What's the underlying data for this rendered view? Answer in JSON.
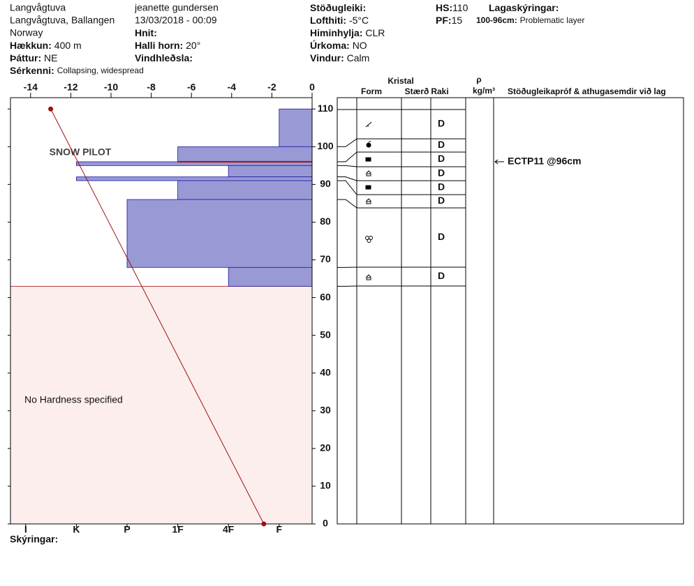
{
  "header": {
    "site": "Langvågtuva",
    "location": "Langvågtuva, Ballangen",
    "country": "Norway",
    "observer": "jeanette gundersen",
    "datetime": "13/03/2018 - 00:09",
    "fields": [
      {
        "label": "Hækkun:",
        "value": "400 m"
      },
      {
        "label": "Þáttur:",
        "value": "NE"
      },
      {
        "label": "Sérkenni:",
        "value": "Collapsing, widespread"
      },
      {
        "label": "Hnit:"
      },
      {
        "label": "Halli horn:",
        "value": "20°"
      },
      {
        "label": "Vindhleðsla:"
      },
      {
        "label": "Stöðugleiki:"
      },
      {
        "label": "Lofthiti:",
        "value": "-5°C"
      },
      {
        "label": "Himinhylja:",
        "value": "CLR"
      },
      {
        "label": "Úrkoma:",
        "value": "NO"
      },
      {
        "label": "Vindur:",
        "value": "Calm"
      },
      {
        "label": "HS:",
        "value": 110
      },
      {
        "label": "PF:",
        "value": 15
      },
      {
        "label": "Lagaskýringar:"
      },
      {
        "label": "100-96cm:",
        "value": "Problematic layer"
      }
    ]
  },
  "table": {
    "headers": {
      "crystal": "Kristal",
      "form": "Form",
      "size": "Stærð",
      "wetness": "Raki",
      "density": "ρ",
      "density_unit": "kg/m³",
      "comments": "Stöðugleikapróf & athugasemdir við lag"
    },
    "notes_label": "Skýringar:"
  },
  "watermark": "SNOW PILOT",
  "chart_data": {
    "type": "profile",
    "ylim": [
      0,
      113
    ],
    "yticks": [
      0,
      10,
      20,
      30,
      40,
      50,
      60,
      70,
      80,
      90,
      100,
      110
    ],
    "temperature": {
      "xlim": [
        -15,
        0
      ],
      "xticks": [
        -14,
        -12,
        -10,
        -8,
        -6,
        -4,
        -2,
        0
      ],
      "color": "#a01010",
      "values": [
        -13,
        -2.4
      ],
      "heights": [
        110,
        0
      ]
    },
    "hardness": {
      "xlim": [
        0.35,
        6.3
      ],
      "xticks": [
        {
          "value": 6,
          "label": "I"
        },
        {
          "value": 5,
          "label": "K"
        },
        {
          "value": 4,
          "label": "P"
        },
        {
          "value": 3,
          "label": "1F"
        },
        {
          "value": 2,
          "label": "4F"
        },
        {
          "value": 1,
          "label": "F"
        }
      ],
      "color": "#9999d6",
      "edge": "#1a1aa0"
    },
    "layers": {
      "top": [
        110,
        100,
        96,
        95,
        92,
        91,
        86,
        68
      ],
      "bottom": [
        100,
        96,
        95,
        92,
        91,
        86,
        68,
        63
      ],
      "hardness": [
        1,
        3,
        5,
        2,
        5,
        3,
        4,
        2
      ],
      "wetness": [
        "D",
        "D",
        "D",
        "D",
        "D",
        "D",
        "D",
        "D"
      ]
    },
    "no_hardness_note": "No Hardness specified",
    "tests": [
      {
        "label": "ECTP11 @96cm",
        "height": 96
      }
    ]
  }
}
